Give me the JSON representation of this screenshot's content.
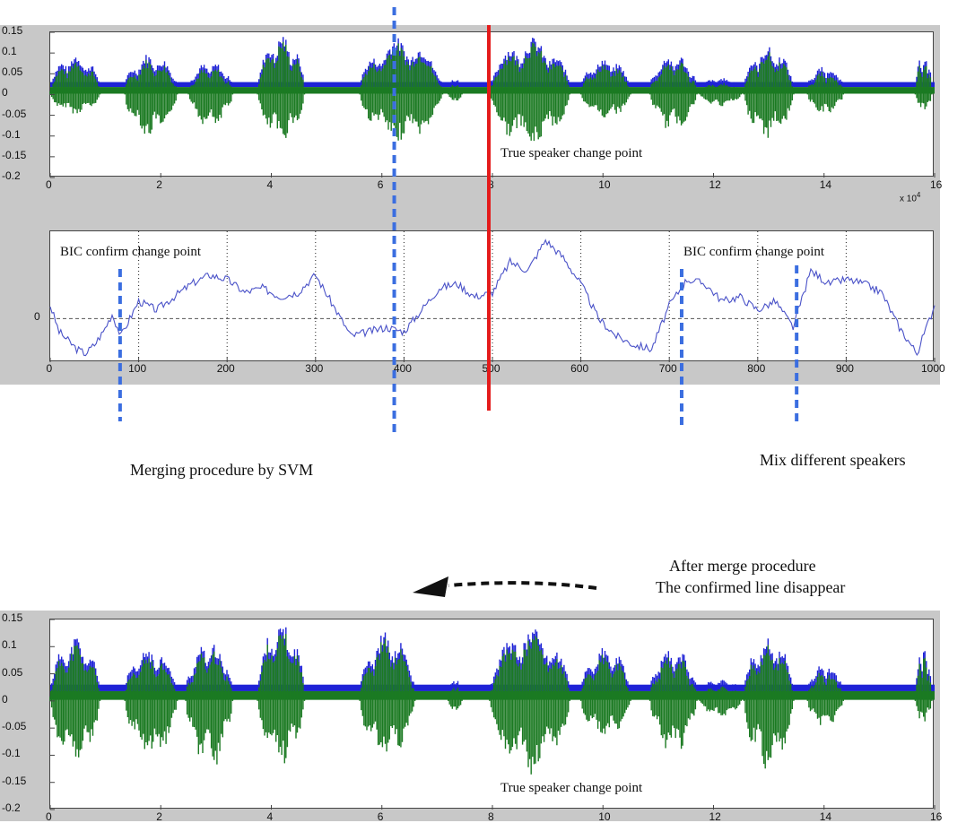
{
  "colors": {
    "envelope": "#1e22d6",
    "waveform": "#1b7a22",
    "bic_line": "#4a52c8",
    "true_change": "#e41b1b",
    "bic_marker": "#3b6ee0",
    "panel_bg": "#c8c8c8"
  },
  "annotations": {
    "true_change_top": "True speaker change point",
    "bic_left": "BIC confirm change point",
    "bic_right": "BIC confirm change point",
    "merging": "Merging procedure  by SVM",
    "mix": "Mix  different speakers",
    "after_merge_1": "After merge procedure",
    "after_merge_2": "The confirmed line disappear",
    "true_change_bottom": "True speaker change point"
  },
  "chart_data": [
    {
      "type": "line",
      "kind": "audio-waveform",
      "x_range": [
        0,
        16
      ],
      "x_multiplier": "x 10",
      "x_multiplier_exp": "4",
      "ylim": [
        -0.2,
        0.15
      ],
      "x_ticks": [
        "0",
        "2",
        "4",
        "6",
        "8",
        "10",
        "12",
        "14",
        "16"
      ],
      "y_ticks": [
        "0.15",
        "0.1",
        "0.05",
        "0",
        "-0.05",
        "-0.1",
        "-0.15",
        "-0.2"
      ],
      "true_change_point": 8,
      "segments": [
        {
          "start": 0.0,
          "end": 0.9,
          "peak": 0.1,
          "trough": -0.05
        },
        {
          "start": 1.35,
          "end": 2.3,
          "peak": 0.1,
          "trough": -0.11
        },
        {
          "start": 2.5,
          "end": 3.3,
          "peak": 0.08,
          "trough": -0.08
        },
        {
          "start": 3.75,
          "end": 4.6,
          "peak": 0.15,
          "trough": -0.12
        },
        {
          "start": 5.6,
          "end": 7.1,
          "peak": 0.14,
          "trough": -0.12
        },
        {
          "start": 7.2,
          "end": 7.45,
          "peak": 0.04,
          "trough": -0.02
        },
        {
          "start": 7.95,
          "end": 9.4,
          "peak": 0.14,
          "trough": -0.13
        },
        {
          "start": 9.6,
          "end": 10.5,
          "peak": 0.09,
          "trough": -0.06
        },
        {
          "start": 10.85,
          "end": 11.7,
          "peak": 0.1,
          "trough": -0.09
        },
        {
          "start": 11.75,
          "end": 12.5,
          "peak": 0.04,
          "trough": -0.03
        },
        {
          "start": 12.55,
          "end": 13.45,
          "peak": 0.12,
          "trough": -0.11
        },
        {
          "start": 13.7,
          "end": 14.35,
          "peak": 0.07,
          "trough": -0.05
        },
        {
          "start": 15.65,
          "end": 15.95,
          "peak": 0.1,
          "trough": -0.04
        }
      ]
    },
    {
      "type": "line",
      "kind": "BIC-curve",
      "x_range": [
        0,
        1000
      ],
      "x_ticks": [
        "0",
        "100",
        "200",
        "300",
        "400",
        "500",
        "600",
        "700",
        "800",
        "900",
        "1000"
      ],
      "y_ticks": [
        "0"
      ],
      "ylim": [
        -1.0,
        2.0
      ],
      "grid": "dotted vertical",
      "x": [
        0,
        10,
        20,
        30,
        40,
        50,
        60,
        70,
        80,
        90,
        100,
        120,
        140,
        160,
        180,
        200,
        220,
        240,
        260,
        280,
        300,
        320,
        340,
        360,
        380,
        400,
        420,
        440,
        460,
        480,
        500,
        520,
        540,
        560,
        580,
        600,
        620,
        640,
        660,
        680,
        700,
        720,
        740,
        760,
        780,
        800,
        820,
        840,
        860,
        880,
        900,
        920,
        940,
        960,
        980,
        1000
      ],
      "values": [
        0.3,
        -0.3,
        -0.5,
        -0.7,
        -0.8,
        -0.6,
        -0.3,
        0.1,
        -0.4,
        0.0,
        0.4,
        0.2,
        0.5,
        0.8,
        1.0,
        0.9,
        0.6,
        0.7,
        0.5,
        0.6,
        1.0,
        0.3,
        -0.4,
        -0.3,
        -0.2,
        -0.3,
        0.2,
        0.7,
        0.8,
        0.5,
        0.6,
        1.3,
        1.1,
        1.8,
        1.4,
        0.8,
        0.0,
        -0.4,
        -0.6,
        -0.7,
        0.3,
        0.9,
        0.8,
        0.4,
        0.5,
        0.2,
        0.4,
        -0.2,
        1.1,
        0.8,
        0.9,
        0.8,
        0.6,
        -0.2,
        -0.8,
        0.3
      ],
      "bic_change_points": [
        80,
        390,
        715,
        845
      ],
      "true_change_point": 500
    },
    {
      "type": "line",
      "kind": "audio-waveform",
      "x_range": [
        0,
        16
      ],
      "ylim": [
        -0.2,
        0.15
      ],
      "x_ticks": [
        "0",
        "2",
        "4",
        "6",
        "8",
        "10",
        "12",
        "14",
        "16"
      ],
      "y_ticks": [
        "0.15",
        "0.1",
        "0.05",
        "0",
        "-0.05",
        "-0.1",
        "-0.15",
        "-0.2"
      ],
      "segments": [
        {
          "start": 0.0,
          "end": 0.9,
          "peak": 0.12,
          "trough": -0.12
        },
        {
          "start": 1.35,
          "end": 2.3,
          "peak": 0.1,
          "trough": -0.11
        },
        {
          "start": 2.45,
          "end": 3.3,
          "peak": 0.11,
          "trough": -0.13
        },
        {
          "start": 3.75,
          "end": 4.6,
          "peak": 0.15,
          "trough": -0.12
        },
        {
          "start": 5.6,
          "end": 6.6,
          "peak": 0.13,
          "trough": -0.11
        },
        {
          "start": 7.2,
          "end": 7.45,
          "peak": 0.04,
          "trough": -0.02
        },
        {
          "start": 7.95,
          "end": 9.4,
          "peak": 0.14,
          "trough": -0.14
        },
        {
          "start": 9.6,
          "end": 10.5,
          "peak": 0.1,
          "trough": -0.07
        },
        {
          "start": 10.85,
          "end": 11.7,
          "peak": 0.1,
          "trough": -0.1
        },
        {
          "start": 11.75,
          "end": 12.5,
          "peak": 0.04,
          "trough": -0.03
        },
        {
          "start": 12.55,
          "end": 13.45,
          "peak": 0.12,
          "trough": -0.13
        },
        {
          "start": 13.7,
          "end": 14.35,
          "peak": 0.07,
          "trough": -0.05
        },
        {
          "start": 15.65,
          "end": 15.95,
          "peak": 0.1,
          "trough": -0.04
        }
      ]
    }
  ]
}
